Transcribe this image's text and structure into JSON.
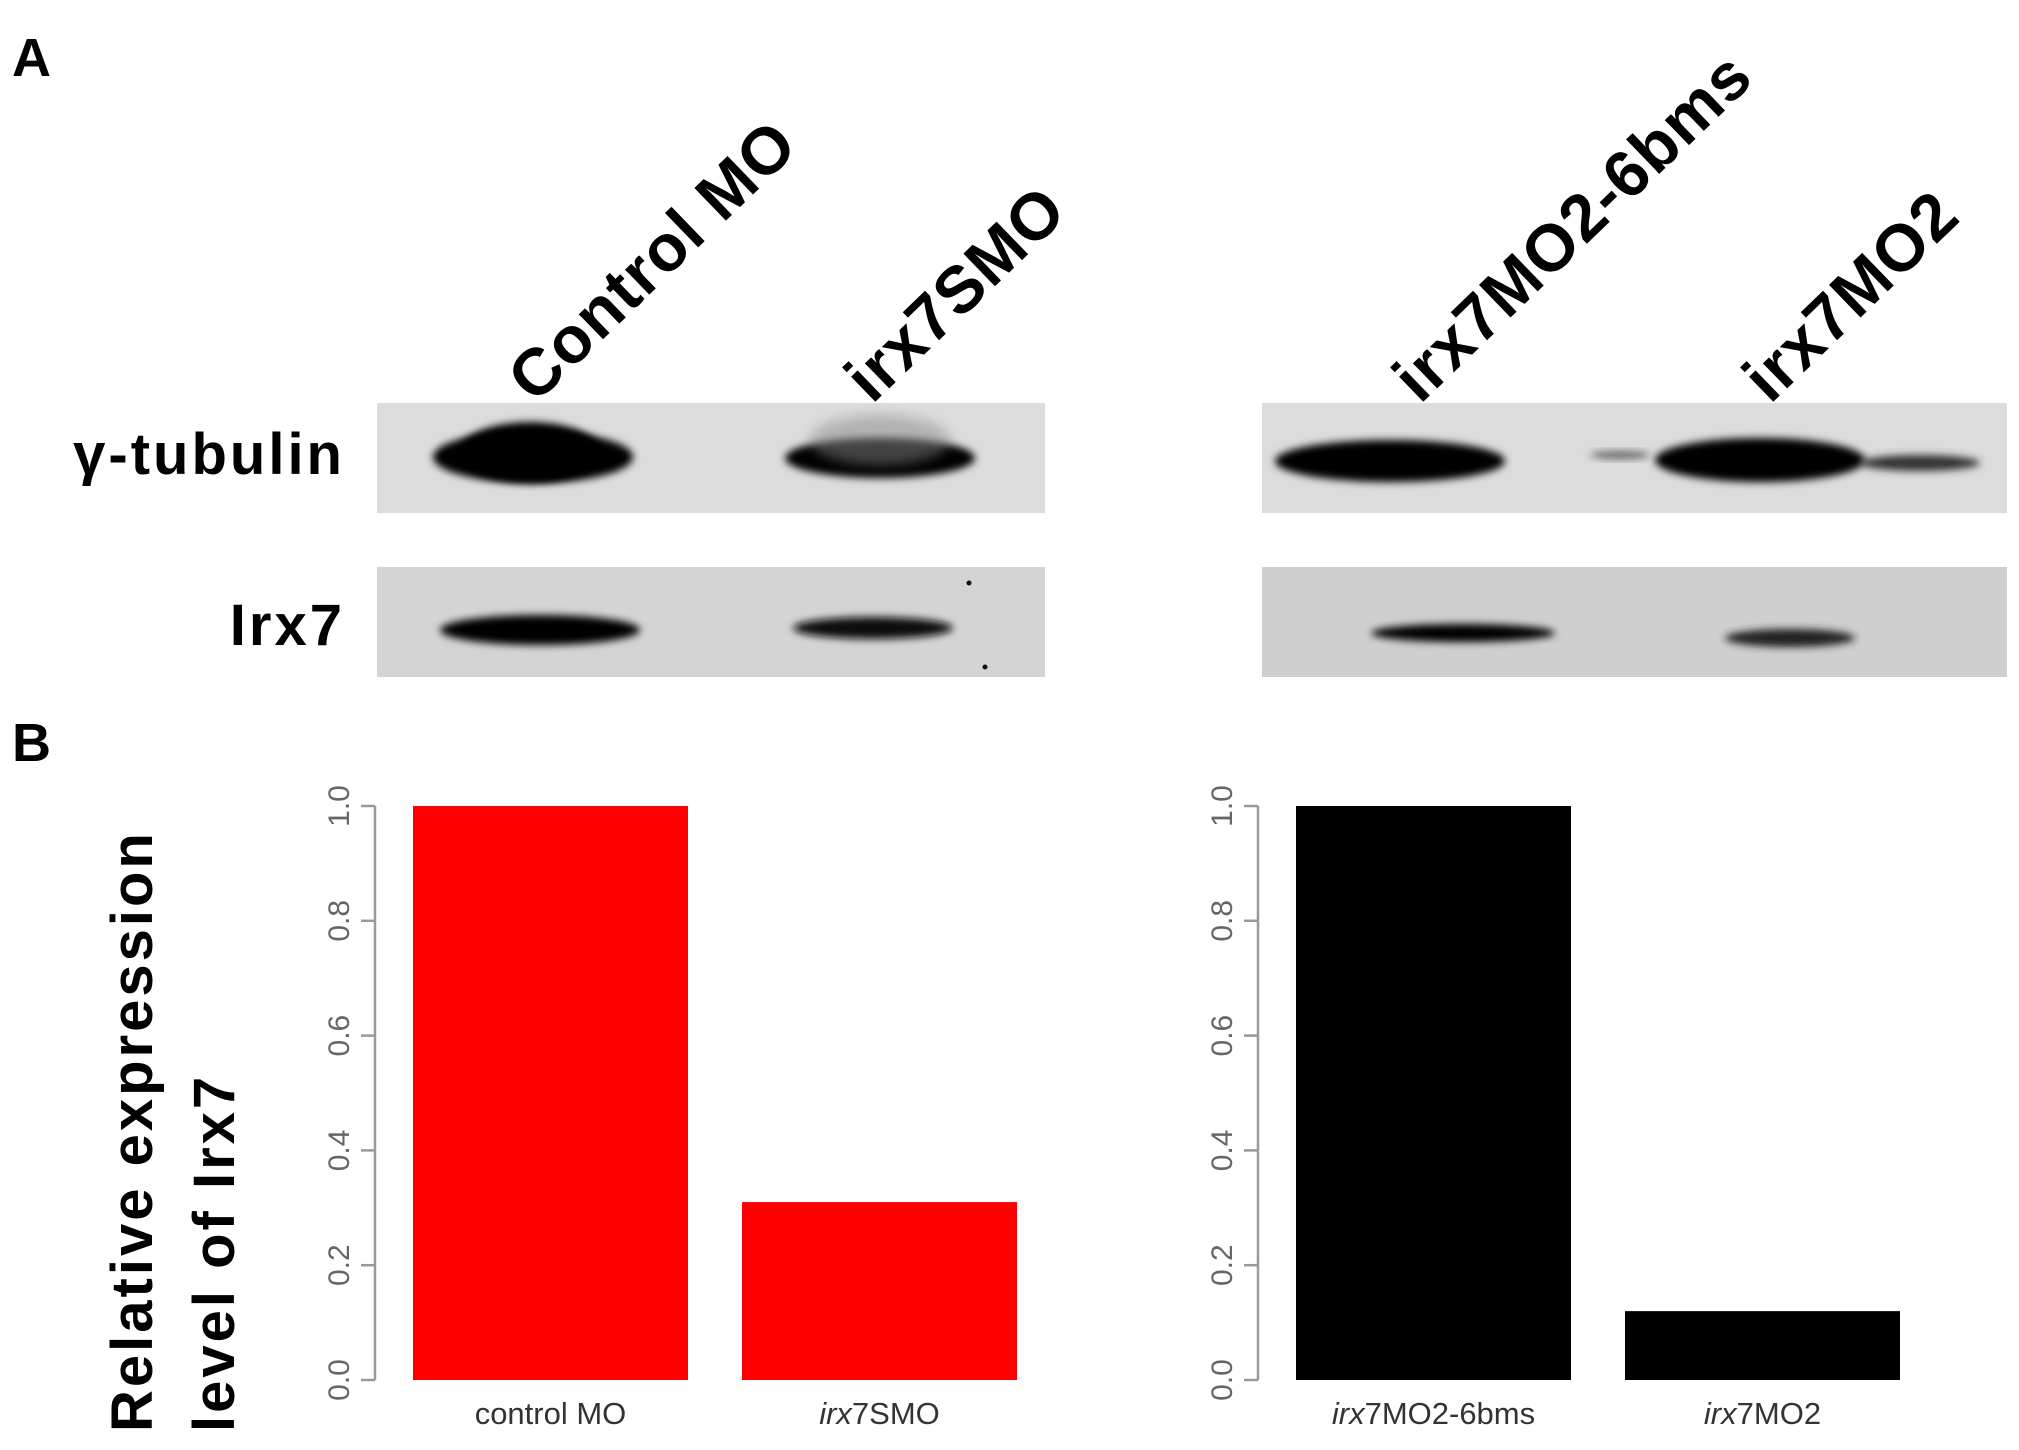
{
  "panel_a": {
    "letter": "A",
    "lanes_left": [
      "Control MO",
      "irx7SMO"
    ],
    "lanes_right": [
      "irx7MO2-6bms",
      "irx7MO2"
    ],
    "proteins": [
      "γ-tubulin",
      "Irx7"
    ]
  },
  "panel_b": {
    "letter": "B",
    "ylabel_line1": "Relative expression",
    "ylabel_line2": "level of Irx7"
  },
  "chart_data": [
    {
      "type": "bar",
      "categories": [
        "control  MO",
        "irx7SMO"
      ],
      "values": [
        1.0,
        0.31
      ],
      "ylim": [
        0,
        1.0
      ],
      "yticks": [
        "0.0",
        "0.2",
        "0.4",
        "0.6",
        "0.8",
        "1.0"
      ],
      "color": "#ff0000",
      "title": "",
      "xlabel": ""
    },
    {
      "type": "bar",
      "categories": [
        "irx7MO2-6bms",
        "irx7MO2"
      ],
      "values": [
        1.0,
        0.12
      ],
      "ylim": [
        0,
        1.0
      ],
      "yticks": [
        "0.0",
        "0.2",
        "0.4",
        "0.6",
        "0.8",
        "1.0"
      ],
      "color": "#000000",
      "title": "",
      "xlabel": ""
    }
  ]
}
